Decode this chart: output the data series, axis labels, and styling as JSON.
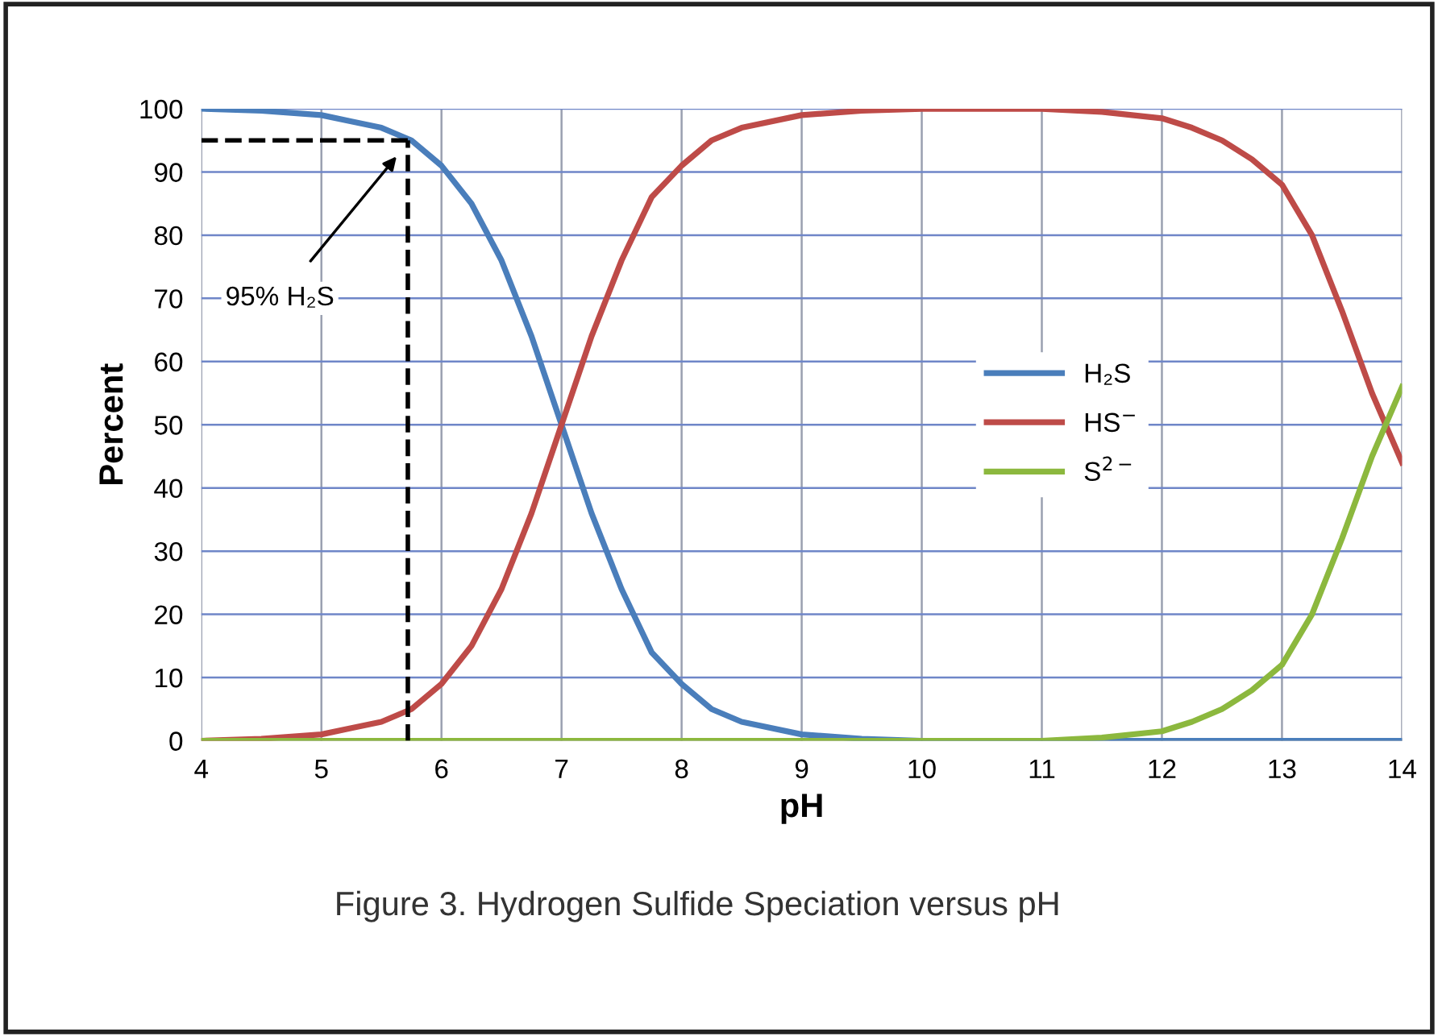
{
  "chart_data": {
    "type": "line",
    "xlabel": "pH",
    "ylabel": "Percent",
    "x": [
      4,
      4.5,
      5,
      5.25,
      5.5,
      5.75,
      6,
      6.25,
      6.5,
      6.75,
      7,
      7.25,
      7.5,
      7.75,
      8,
      8.25,
      8.5,
      9,
      9.5,
      10,
      11,
      11.5,
      12,
      12.25,
      12.5,
      12.75,
      13,
      13.25,
      13.5,
      13.75,
      14
    ],
    "series": [
      {
        "name": "H₂S",
        "color": "#4a7ebb",
        "values": [
          100,
          99.7,
          99,
          98,
          97,
          95,
          91,
          85,
          76,
          64,
          50,
          36,
          24,
          14,
          9,
          5,
          3,
          1,
          0.3,
          0,
          0,
          0,
          0,
          0,
          0,
          0,
          0,
          0,
          0,
          0,
          0
        ]
      },
      {
        "name": "HS$^{−}$",
        "color": "#be4b48",
        "values": [
          0,
          0.3,
          1,
          2,
          3,
          5,
          9,
          15,
          24,
          36,
          50,
          64,
          76,
          86,
          91,
          95,
          97,
          99,
          99.7,
          100,
          100,
          99.5,
          98.5,
          97,
          95,
          92,
          88,
          80,
          68,
          55,
          44
        ]
      },
      {
        "name": "S$^{2−}$",
        "color": "#8cb83e",
        "values": [
          0,
          0,
          0,
          0,
          0,
          0,
          0,
          0,
          0,
          0,
          0,
          0,
          0,
          0,
          0,
          0,
          0,
          0,
          0,
          0,
          0,
          0.5,
          1.5,
          3,
          5,
          8,
          12,
          20,
          32,
          45,
          56
        ]
      }
    ],
    "xlim": [
      4,
      14
    ],
    "ylim": [
      0,
      100
    ],
    "xticks": [
      4,
      5,
      6,
      7,
      8,
      9,
      10,
      11,
      12,
      13,
      14
    ],
    "yticks": [
      0,
      10,
      20,
      30,
      40,
      50,
      60,
      70,
      80,
      90,
      100
    ],
    "ref_lines": [
      {
        "axis": "y",
        "value": 95,
        "color": "#000000",
        "line_style": "dashed"
      },
      {
        "axis": "x",
        "value": 5.72,
        "color": "#000000",
        "line_style": "dashed"
      }
    ],
    "annotations": [
      "95% H₂S",
      "Figure 3. Hydrogen Sulfide Speciation versus pH"
    ],
    "grid": true,
    "legend": "right",
    "marker": "none",
    "line_style": "solid"
  }
}
